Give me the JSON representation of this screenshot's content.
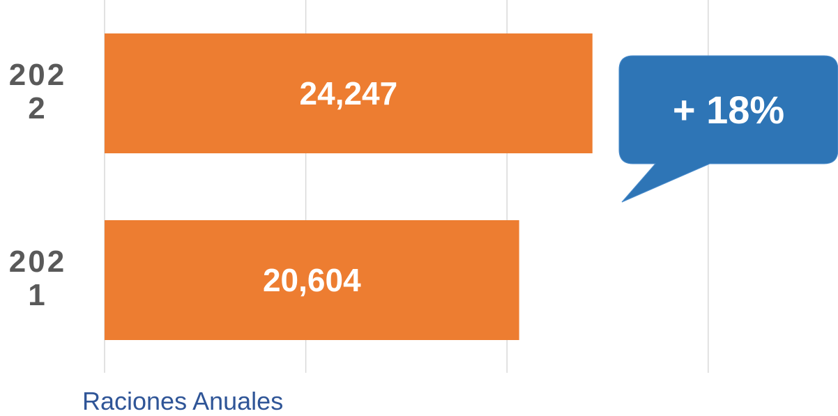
{
  "chart_data": {
    "type": "barh",
    "categories": [
      "2022",
      "2021"
    ],
    "values": [
      24247,
      20604
    ],
    "value_labels": [
      "24,247",
      "20,604"
    ],
    "color": "#ed7d31",
    "xlabel": "Raciones Anuales",
    "annotation": "+ 18%",
    "annotation_color": "#2e75b6",
    "xlim": [
      0,
      36000
    ],
    "xticks": [
      0,
      10000,
      20000,
      30000
    ],
    "grid": true
  }
}
